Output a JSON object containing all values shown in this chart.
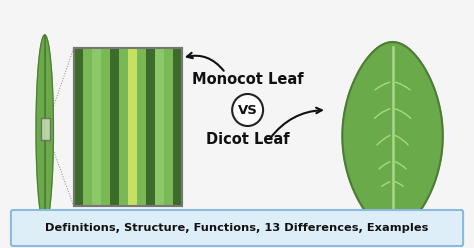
{
  "monocot_label": "Monocot Leaf",
  "vs_label": "VS",
  "dicot_label": "Dicot Leaf",
  "footer_text": "Definitions, Structure, Functions, 13 Differences, Examples",
  "bg_color": "#f5f5f5",
  "leaf_green_dark": "#4e7c35",
  "leaf_green_mid": "#6aaa4a",
  "leaf_green_light": "#8bc86a",
  "leaf_vein_light": "#a8d888",
  "stripe_yellow_green": "#c8e060",
  "stripe_mid": "#78b855",
  "stripe_dark": "#3d6b2a",
  "footer_bg": "#ddeef8",
  "footer_border": "#88bbdd",
  "text_color": "#111111",
  "vs_circle_border": "#222222",
  "arrow_color": "#111111"
}
